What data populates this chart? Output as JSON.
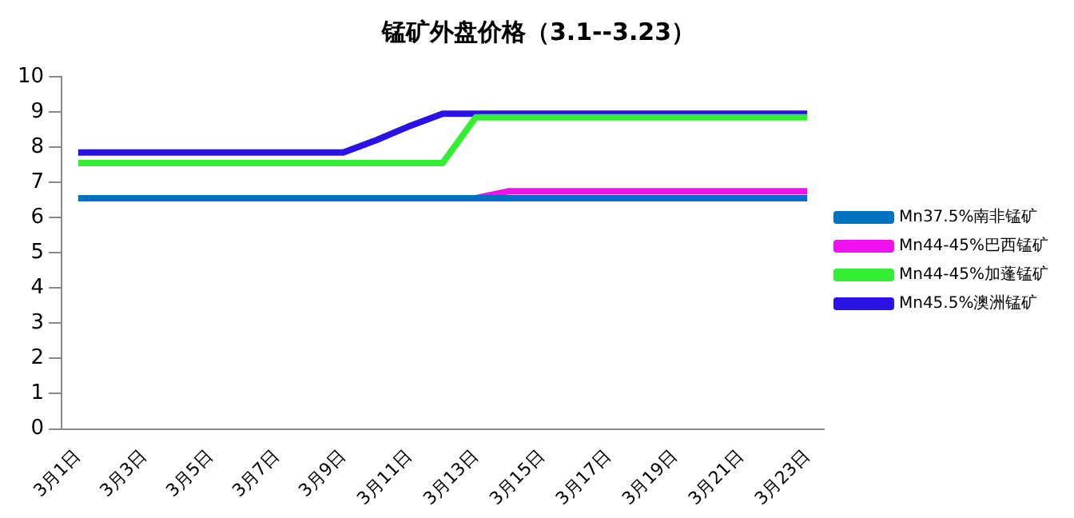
{
  "chart_data": {
    "type": "line",
    "title": "锰矿外盘价格（3.1--3.23）",
    "categories": [
      "3月1日",
      null,
      "3月3日",
      null,
      "3月5日",
      null,
      "3月7日",
      null,
      "3月9日",
      null,
      "3月11日",
      null,
      "3月13日",
      null,
      "3月15日",
      null,
      "3月17日",
      null,
      "3月19日",
      null,
      "3月21日",
      null,
      "3月23日"
    ],
    "series": [
      {
        "name": "Mn45.5%澳洲锰矿",
        "color": "#2a12e6",
        "values": [
          7.85,
          7.85,
          7.85,
          7.85,
          7.85,
          7.85,
          7.85,
          7.85,
          7.85,
          8.2,
          8.6,
          8.95,
          8.95,
          8.95,
          8.95,
          8.95,
          8.95,
          8.95,
          8.95,
          8.95,
          8.95,
          8.95,
          8.95
        ]
      },
      {
        "name": "Mn44-45%加蓬锰矿",
        "color": "#33ee33",
        "values": [
          7.55,
          7.55,
          7.55,
          7.55,
          7.55,
          7.55,
          7.55,
          7.55,
          7.55,
          7.55,
          7.55,
          7.55,
          8.85,
          8.85,
          8.85,
          8.85,
          8.85,
          8.85,
          8.85,
          8.85,
          8.85,
          8.85,
          8.85
        ]
      },
      {
        "name": "Mn44-45%巴西锰矿",
        "color": "#ee11ee",
        "values": [
          null,
          null,
          null,
          null,
          null,
          null,
          null,
          null,
          null,
          null,
          null,
          null,
          6.55,
          6.75,
          6.75,
          6.75,
          6.75,
          6.75,
          6.75,
          6.75,
          6.75,
          6.75,
          6.75
        ]
      },
      {
        "name": "Mn37.5%南非锰矿",
        "color": "#0070c0",
        "values": [
          6.55,
          6.55,
          6.55,
          6.55,
          6.55,
          6.55,
          6.55,
          6.55,
          6.55,
          6.55,
          6.55,
          6.55,
          6.55,
          6.55,
          6.55,
          6.55,
          6.55,
          6.55,
          6.55,
          6.55,
          6.55,
          6.55,
          6.55
        ]
      }
    ],
    "ylim": [
      0,
      10
    ],
    "yticks": [
      0,
      1,
      2,
      3,
      4,
      5,
      6,
      7,
      8,
      9,
      10
    ],
    "grid": false,
    "legend": "right",
    "marker": "none",
    "line_style": "solid"
  }
}
